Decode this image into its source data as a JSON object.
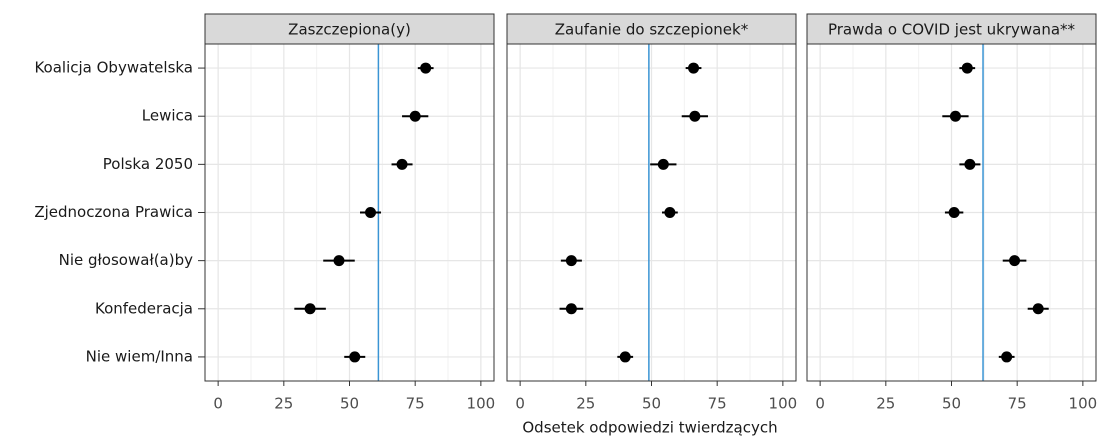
{
  "chart_data": {
    "type": "dot",
    "categories": [
      "Koalicja Obywatelska",
      "Lewica",
      "Polska 2050",
      "Zjednoczona Prawica",
      "Nie głosował(a)by",
      "Konfederacja",
      "Nie wiem/Inna"
    ],
    "xlabel": "Odsetek odpowiedzi twierdzących",
    "xlim": [
      -5,
      105
    ],
    "xticks": [
      0,
      25,
      50,
      75,
      100
    ],
    "xminor": [
      12.5,
      37.5,
      62.5,
      87.5
    ],
    "grid": true,
    "point_color": "#000000",
    "reference_color": "#3a94d4",
    "panels": [
      {
        "title": "Zaszczepiona(y)",
        "values": [
          79,
          75,
          70,
          58,
          46,
          35,
          52
        ],
        "errors": [
          3,
          5,
          4,
          4,
          6,
          6,
          4
        ],
        "reference": 61
      },
      {
        "title": "Zaufanie do szczepionek*",
        "values": [
          66,
          66.5,
          54.5,
          57,
          19.5,
          19.5,
          40
        ],
        "errors": [
          3,
          5,
          5,
          3,
          4,
          4.5,
          3
        ],
        "reference": 49
      },
      {
        "title": "Prawda o COVID jest ukrywana**",
        "values": [
          56,
          51.5,
          57,
          51,
          74,
          83,
          71
        ],
        "errors": [
          3,
          5,
          4,
          3.5,
          4.5,
          4,
          3
        ],
        "reference": 62
      }
    ]
  }
}
